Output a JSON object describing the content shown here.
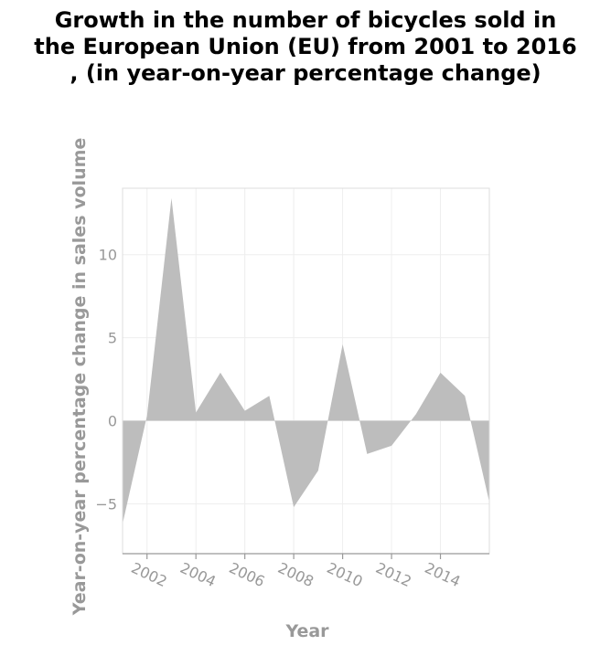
{
  "title_lines": [
    "Growth in the number of bicycles sold in",
    "the European Union (EU) from 2001 to 2016",
    ", (in year-on-year percentage change)"
  ],
  "colors": {
    "area": "#bdbdbd",
    "grid": "#eeeeee",
    "axis": "#999999",
    "title": "#000000"
  },
  "chart_data": {
    "type": "area",
    "title": "Growth in the number of bicycles sold in the European Union (EU) from 2001 to 2016 , (in year-on-year percentage change)",
    "xlabel": "Year",
    "ylabel": "Year-on-year percentage change in sales volume",
    "xlim": [
      2001,
      2016
    ],
    "ylim": [
      -8,
      14
    ],
    "x_ticks": [
      "2002",
      "2004",
      "2006",
      "2008",
      "2010",
      "2012",
      "2014"
    ],
    "y_ticks": [
      "-5",
      "0",
      "5",
      "10"
    ],
    "grid": true,
    "series": [
      {
        "x": [
          2001,
          2002,
          2003,
          2004,
          2005,
          2006,
          2007,
          2008,
          2009,
          2010,
          2011,
          2012,
          2013,
          2014,
          2015,
          2016
        ],
        "values": [
          -6.2,
          0.3,
          13.4,
          0.5,
          2.9,
          0.6,
          1.5,
          -5.2,
          -3.0,
          4.6,
          -2.0,
          -1.5,
          0.4,
          2.9,
          1.5,
          -4.9
        ]
      }
    ]
  }
}
